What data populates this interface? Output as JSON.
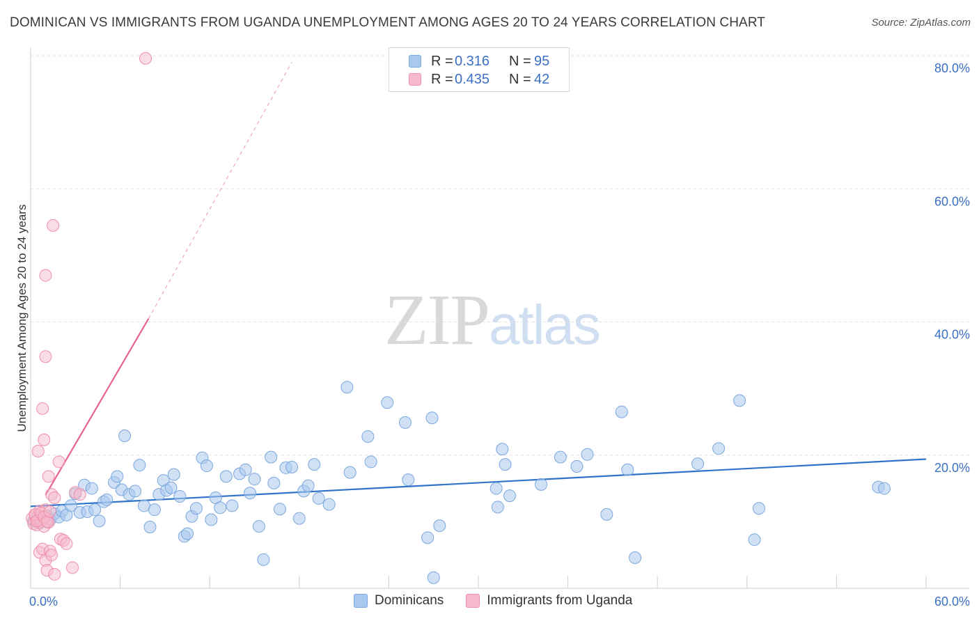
{
  "header": {
    "title": "DOMINICAN VS IMMIGRANTS FROM UGANDA UNEMPLOYMENT AMONG AGES 20 TO 24 YEARS CORRELATION CHART",
    "source": "Source: ZipAtlas.com"
  },
  "watermark": {
    "zip": "ZIP",
    "atlas": "atlas"
  },
  "legend": {
    "rows": [
      {
        "r_label": "R =",
        "r_value": "0.316",
        "n_label": "N =",
        "n_value": "95"
      },
      {
        "r_label": "R =",
        "r_value": "0.435",
        "n_label": "N =",
        "n_value": "42"
      }
    ]
  },
  "bottom_legend": {
    "series1": "Dominicans",
    "series2": "Immigrants from Uganda"
  },
  "colors": {
    "blue_fill": "#a9c8ee",
    "blue_stroke": "#7aa7dd",
    "blue_line": "#2f73c9",
    "pink_fill": "#f6b9cb",
    "pink_stroke": "#ee8fab",
    "pink_line": "#e4638f",
    "grid": "#e3e3e3",
    "axis_label": "#3a6fc4"
  },
  "chart_data": {
    "type": "scatter",
    "title": "DOMINICAN VS IMMIGRANTS FROM UGANDA UNEMPLOYMENT AMONG AGES 20 TO 24 YEARS CORRELATION CHART",
    "xlabel": "",
    "ylabel": "Unemployment Among Ages 20 to 24 years",
    "xlim": [
      0,
      60
    ],
    "ylim": [
      0,
      80
    ],
    "x_tick_labels": [
      "0.0%",
      "60.0%"
    ],
    "y_tick_labels": [
      "20.0%",
      "40.0%",
      "60.0%",
      "80.0%"
    ],
    "y_tick_values": [
      20,
      40,
      60,
      80
    ],
    "grid": true,
    "series": [
      {
        "name": "Dominicans",
        "r": 0.316,
        "n": 95,
        "trend": {
          "x": [
            0,
            60
          ],
          "y": [
            12.3,
            19.4
          ],
          "style": "solid"
        },
        "points": [
          [
            0.2,
            10.1
          ],
          [
            0.4,
            10.6
          ],
          [
            0.6,
            9.8
          ],
          [
            0.9,
            10.4
          ],
          [
            1.1,
            10.9
          ],
          [
            1.3,
            10.3
          ],
          [
            1.6,
            11.2
          ],
          [
            1.9,
            10.7
          ],
          [
            2.1,
            11.6
          ],
          [
            2.4,
            11.0
          ],
          [
            2.7,
            12.4
          ],
          [
            3.0,
            14.2
          ],
          [
            3.3,
            11.4
          ],
          [
            3.6,
            15.5
          ],
          [
            3.8,
            11.5
          ],
          [
            4.1,
            15.0
          ],
          [
            4.3,
            11.8
          ],
          [
            4.6,
            10.1
          ],
          [
            4.9,
            13.0
          ],
          [
            5.1,
            13.3
          ],
          [
            5.6,
            15.9
          ],
          [
            5.8,
            16.8
          ],
          [
            6.1,
            14.8
          ],
          [
            6.3,
            22.9
          ],
          [
            6.6,
            14.1
          ],
          [
            7.0,
            14.6
          ],
          [
            7.3,
            18.5
          ],
          [
            7.6,
            12.4
          ],
          [
            8.0,
            9.2
          ],
          [
            8.3,
            11.8
          ],
          [
            8.6,
            14.1
          ],
          [
            8.9,
            16.2
          ],
          [
            9.1,
            14.7
          ],
          [
            9.4,
            15.1
          ],
          [
            9.6,
            17.1
          ],
          [
            10.0,
            13.8
          ],
          [
            10.3,
            7.8
          ],
          [
            10.5,
            8.2
          ],
          [
            10.8,
            10.8
          ],
          [
            11.1,
            12.0
          ],
          [
            11.5,
            19.6
          ],
          [
            11.8,
            18.4
          ],
          [
            12.1,
            10.3
          ],
          [
            12.4,
            13.6
          ],
          [
            12.7,
            12.1
          ],
          [
            13.1,
            16.8
          ],
          [
            13.5,
            12.4
          ],
          [
            14.0,
            17.2
          ],
          [
            14.4,
            17.8
          ],
          [
            14.7,
            14.3
          ],
          [
            15.0,
            16.4
          ],
          [
            15.3,
            9.3
          ],
          [
            15.6,
            4.3
          ],
          [
            16.1,
            19.7
          ],
          [
            16.3,
            15.8
          ],
          [
            16.7,
            11.9
          ],
          [
            17.1,
            18.1
          ],
          [
            17.5,
            18.2
          ],
          [
            18.0,
            10.5
          ],
          [
            18.3,
            14.6
          ],
          [
            18.6,
            15.4
          ],
          [
            19.0,
            18.6
          ],
          [
            19.3,
            13.5
          ],
          [
            20.0,
            12.6
          ],
          [
            21.2,
            30.2
          ],
          [
            21.4,
            17.4
          ],
          [
            22.6,
            22.8
          ],
          [
            22.8,
            19.0
          ],
          [
            23.9,
            27.9
          ],
          [
            25.1,
            24.9
          ],
          [
            25.3,
            16.3
          ],
          [
            26.6,
            7.6
          ],
          [
            26.9,
            25.6
          ],
          [
            27.0,
            1.6
          ],
          [
            27.4,
            9.4
          ],
          [
            31.2,
            15.0
          ],
          [
            31.3,
            12.2
          ],
          [
            31.6,
            20.9
          ],
          [
            31.8,
            18.6
          ],
          [
            32.1,
            13.9
          ],
          [
            34.2,
            15.6
          ],
          [
            35.5,
            19.7
          ],
          [
            36.6,
            18.3
          ],
          [
            37.3,
            20.1
          ],
          [
            38.6,
            11.1
          ],
          [
            39.6,
            26.5
          ],
          [
            40.0,
            17.8
          ],
          [
            40.5,
            4.6
          ],
          [
            44.7,
            18.7
          ],
          [
            46.1,
            21.0
          ],
          [
            47.5,
            28.2
          ],
          [
            48.5,
            7.3
          ],
          [
            48.8,
            12.0
          ],
          [
            56.8,
            15.2
          ],
          [
            57.2,
            15.0
          ]
        ]
      },
      {
        "name": "Immigrants from Uganda",
        "r": 0.435,
        "n": 42,
        "trend": {
          "x": [
            1.0,
            7.9
          ],
          "y": [
            14.0,
            40.5
          ],
          "style": "solid",
          "extension": {
            "x": [
              7.9,
              17.5
            ],
            "y": [
              40.5,
              79.0
            ],
            "style": "dashed"
          }
        },
        "points": [
          [
            0.1,
            10.5
          ],
          [
            0.2,
            9.7
          ],
          [
            0.3,
            10.9
          ],
          [
            0.4,
            9.5
          ],
          [
            0.5,
            10.2
          ],
          [
            0.6,
            11.6
          ],
          [
            0.7,
            10.0
          ],
          [
            0.8,
            10.8
          ],
          [
            0.9,
            9.3
          ],
          [
            1.0,
            11.8
          ],
          [
            1.1,
            10.4
          ],
          [
            1.2,
            9.9
          ],
          [
            0.5,
            20.6
          ],
          [
            0.8,
            27.0
          ],
          [
            0.9,
            22.3
          ],
          [
            1.0,
            34.8
          ],
          [
            1.0,
            47.0
          ],
          [
            1.2,
            16.8
          ],
          [
            1.4,
            14.1
          ],
          [
            1.6,
            13.6
          ],
          [
            1.5,
            54.5
          ],
          [
            1.9,
            19.0
          ],
          [
            0.6,
            5.4
          ],
          [
            0.8,
            5.9
          ],
          [
            1.0,
            4.2
          ],
          [
            1.1,
            2.7
          ],
          [
            1.3,
            5.6
          ],
          [
            1.4,
            5.0
          ],
          [
            1.6,
            2.1
          ],
          [
            2.0,
            7.4
          ],
          [
            2.2,
            7.2
          ],
          [
            2.4,
            6.7
          ],
          [
            2.8,
            3.1
          ],
          [
            3.0,
            14.4
          ],
          [
            3.3,
            14.1
          ],
          [
            7.7,
            79.6
          ],
          [
            0.3,
            11.1
          ],
          [
            0.4,
            10.1
          ],
          [
            0.7,
            11.3
          ],
          [
            0.9,
            10.7
          ],
          [
            1.1,
            10.0
          ],
          [
            1.3,
            11.5
          ]
        ]
      }
    ]
  }
}
